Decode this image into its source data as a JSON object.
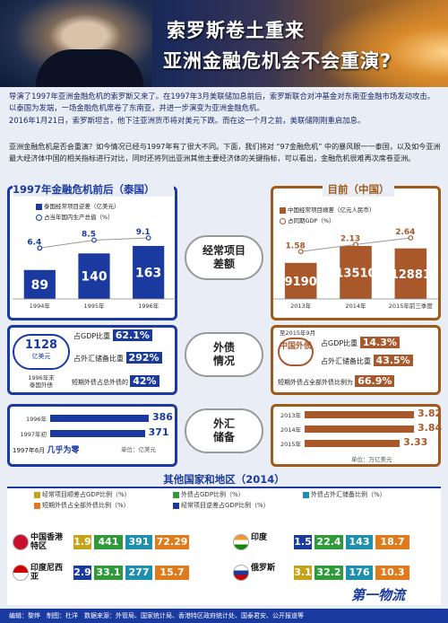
{
  "header": {
    "title_line1": "索罗斯卷土重来",
    "title_line2": "亚洲金融危机会不会重演?"
  },
  "intro": {
    "p1": "导演了1997年亚洲金融危机的索罗斯又来了。在1997年3月美联储加息前后，索罗斯联合对冲基金对东南亚金融市场发动攻击。以泰国为发端，一场金融危机席卷了东南亚，并进一步演变为亚洲金融危机。",
    "p2": "2016年1月21日，索罗斯坦言，他下注亚洲货币将对美元下跌。而在这一个月之前，美联储刚刚重启加息。",
    "p3": "亚洲金融危机是否会重演？如今情况已经与1997年有了很大不同。下面，我们将对 “97金融危机” 中的暴风眼一一泰国，以及如今亚洲最大经济体中国的相关指标进行对比，同时还将列出亚洲其他主要经济体的关键指标，可以看出，金融危机很难再次席卷亚洲。"
  },
  "left": {
    "heading": "1997年金融危机前后（泰国）",
    "legend_bar": "泰国经常项目逆差（亿美元）",
    "legend_line": "占当年国内生产总值（%）",
    "years": [
      "1994年",
      "1995年",
      "1996年"
    ],
    "bars": [
      89,
      140,
      163
    ],
    "line_labels": [
      "6.4",
      "8.5",
      "9.1"
    ],
    "debt_amount": "1128",
    "debt_unit": "亿美元",
    "debt_note1": "1996年末",
    "debt_note2": "泰国外债",
    "debt_gdp_label": "占GDP比重",
    "debt_gdp_value": "62.1%",
    "debt_fx_label": "占外汇储备比重",
    "debt_fx_value": "292%",
    "debt_short_label": "短期外债占总外债的",
    "debt_short_value": "42%",
    "fx_rows": [
      {
        "label": "1996年",
        "value": "386",
        "frac": 1.0
      },
      {
        "label": "1997年初",
        "value": "371",
        "frac": 0.96
      }
    ],
    "fx_note_prefix": "1997年6月",
    "fx_note_bold": "几乎为零",
    "fx_unit": "单位：亿美元"
  },
  "center": {
    "label_current": "经常项目差额",
    "label_debt": "外债情况",
    "label_fx": "外汇储备"
  },
  "right": {
    "heading": "目前（中国）",
    "legend_bar": "中国经常项目顺差（亿元人民币）",
    "legend_line": "占同期GDP（%）",
    "years": [
      "2013年",
      "2014年",
      "2015年前三季度"
    ],
    "bars": [
      9190,
      13510,
      12881
    ],
    "line_labels": [
      "1.58",
      "2.13",
      "2.64"
    ],
    "debt_as_of": "至2015年9月",
    "debt_country": "中国外债",
    "debt_gdp_label": "占GDP比重",
    "debt_gdp_value": "14.3%",
    "debt_fx_label": "占外汇储备比重",
    "debt_fx_value": "43.5%",
    "debt_short_label": "短期外债占全部外债比例为",
    "debt_short_value": "66.9%",
    "fx_rows": [
      {
        "label": "2013年",
        "value": "3.82",
        "frac": 1.0
      },
      {
        "label": "2014年",
        "value": "3.84",
        "frac": 1.0
      },
      {
        "label": "2015年",
        "value": "3.33",
        "frac": 0.87
      }
    ],
    "fx_unit": "单位：万亿美元"
  },
  "others": {
    "heading": "其他国家和地区（2014）",
    "legend": [
      {
        "text": "经常项目顺差占GDP比例（%）",
        "color": "#c8a31a"
      },
      {
        "text": "外债占GDP比例（%）",
        "color": "#2e9a3a"
      },
      {
        "text": "外债占外汇储备比例（%）",
        "color": "#1e8fae"
      },
      {
        "text": "短期外债占全部外债比例（%）",
        "color": "#e07a1a"
      },
      {
        "text": "经常项目逆差占GDP比例（%）",
        "color": "#1a3aa0"
      }
    ],
    "countries": [
      {
        "name": "中国香港特区",
        "values": [
          "1.9",
          "441",
          "391",
          "72.29"
        ],
        "colors": [
          "#c8a31a",
          "#2e9a3a",
          "#1e8fae",
          "#e07a1a"
        ]
      },
      {
        "name": "印度",
        "values": [
          "1.5",
          "22.4",
          "143",
          "18.7"
        ],
        "colors": [
          "#1a3aa0",
          "#2e9a3a",
          "#1e8fae",
          "#e07a1a"
        ]
      },
      {
        "name": "印度尼西亚",
        "values": [
          "2.9",
          "33.1",
          "277",
          "15.7"
        ],
        "colors": [
          "#1a3aa0",
          "#2e9a3a",
          "#1e8fae",
          "#e07a1a"
        ]
      },
      {
        "name": "俄罗斯",
        "values": [
          "3.1",
          "32.2",
          "176",
          "10.3"
        ],
        "colors": [
          "#c8a31a",
          "#2e9a3a",
          "#1e8fae",
          "#e07a1a"
        ]
      }
    ]
  },
  "footer": {
    "text": "编辑：黎烨　制图：杜洋　数据来源：外管局、国家统计局、香港特区政府统计处、国泰君安、公开报道等",
    "logo": "第一物流"
  }
}
